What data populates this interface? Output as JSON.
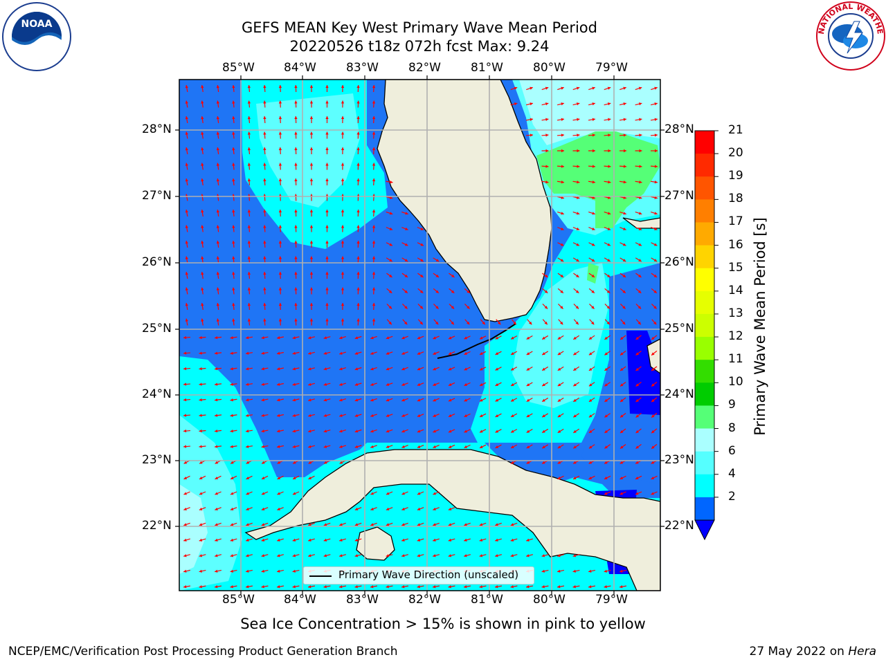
{
  "title_line1": "GEFS MEAN Key West Primary Wave Mean Period",
  "title_line2": "20220526 t18z 072h fcst   Max: 9.24",
  "lon_labels": [
    "85°W",
    "84°W",
    "83°W",
    "82°W",
    "81°W",
    "80°W",
    "79°W"
  ],
  "lat_labels": [
    "28°N",
    "27°N",
    "26°N",
    "25°N",
    "24°N",
    "23°N",
    "22°N"
  ],
  "legend_text": "Primary Wave Direction (unscaled)",
  "colorbar": {
    "label": "Primary Wave Mean Period [s]",
    "ticks": [
      "21",
      "20",
      "19",
      "18",
      "17",
      "16",
      "15",
      "14",
      "13",
      "12",
      "11",
      "10",
      "9",
      "8",
      "6",
      "4",
      "2"
    ],
    "colors": [
      "#ff0000",
      "#ff2a00",
      "#ff5500",
      "#ff7f00",
      "#ffaa00",
      "#ffd400",
      "#ffff00",
      "#e6ff00",
      "#ccff00",
      "#99ff00",
      "#33dd00",
      "#00cc00",
      "#55ff77",
      "#aaffff",
      "#55ffff",
      "#00ffff",
      "#0066ff"
    ],
    "under_color": "#0000ff"
  },
  "ice_note": "Sea Ice Concentration > 15% is shown in pink to yellow",
  "footer_left": "NCEP/EMC/Verification Post Processing Product Generation Branch",
  "footer_date": "27 May 2022 on",
  "footer_host": "Hera",
  "logos": {
    "left": "NOAA",
    "right": "NATIONAL WEATHER SERVICE"
  },
  "colors": {
    "land": "#efeedc",
    "arrow": "#ff0000",
    "grid": "#b0b0b0",
    "deep": "#1f75f5",
    "cyan": "#00ffff",
    "lightcyan": "#5dffff",
    "green": "#55ff77"
  }
}
